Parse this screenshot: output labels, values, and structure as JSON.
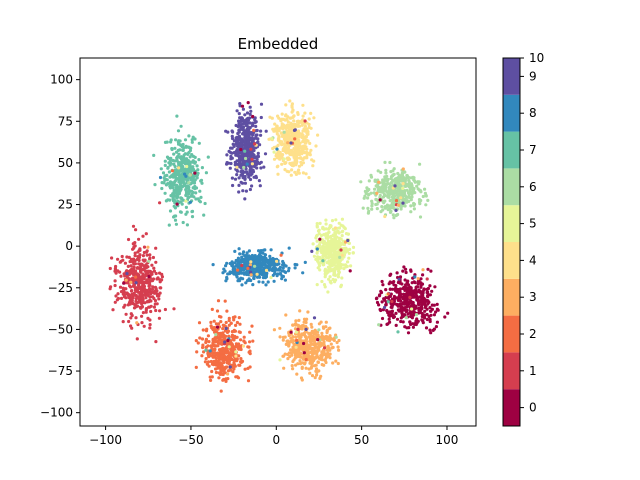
{
  "chart_data": {
    "type": "scatter",
    "title": "Embedded",
    "xlabel": "",
    "ylabel": "",
    "xlim": [
      -115,
      117
    ],
    "ylim": [
      -108,
      113
    ],
    "xticks": [
      -100,
      -50,
      0,
      50,
      100
    ],
    "yticks": [
      -100,
      -75,
      -50,
      -25,
      0,
      25,
      50,
      75,
      100
    ],
    "grid": false,
    "colorbar": {
      "range": [
        0,
        10
      ],
      "ticks": [
        0,
        1,
        2,
        3,
        4,
        5,
        6,
        7,
        8,
        9
      ],
      "top_label": "10",
      "colors": [
        "#9e0142",
        "#d53e4f",
        "#f46d43",
        "#fdae61",
        "#fee08b",
        "#e6f598",
        "#abdda4",
        "#66c2a5",
        "#3288bd",
        "#5e4fa2"
      ]
    },
    "clusters": [
      {
        "label": "0",
        "cx": 77,
        "cy": -33,
        "sx": 16,
        "sy": 14,
        "color": "#9e0142"
      },
      {
        "label": "1",
        "cx": -80,
        "cy": -22,
        "sx": 12,
        "sy": 21,
        "color": "#d53e4f"
      },
      {
        "label": "2",
        "cx": -30,
        "cy": -62,
        "sx": 12,
        "sy": 17,
        "color": "#f46d43"
      },
      {
        "label": "3",
        "cx": 20,
        "cy": -60,
        "sx": 14,
        "sy": 14,
        "color": "#fdae61"
      },
      {
        "label": "4",
        "cx": 10,
        "cy": 63,
        "sx": 10,
        "sy": 17,
        "color": "#fee08b"
      },
      {
        "label": "5",
        "cx": 33,
        "cy": -3,
        "sx": 9,
        "sy": 17,
        "color": "#e6f598"
      },
      {
        "label": "6",
        "cx": 70,
        "cy": 33,
        "sx": 14,
        "sy": 12,
        "color": "#abdda4"
      },
      {
        "label": "7",
        "cx": -55,
        "cy": 43,
        "sx": 10,
        "sy": 21,
        "color": "#66c2a5"
      },
      {
        "label": "8",
        "cx": -12,
        "cy": -12,
        "sx": 17,
        "sy": 8,
        "color": "#3288bd"
      },
      {
        "label": "9",
        "cx": -18,
        "cy": 60,
        "sx": 8,
        "sy": 21,
        "color": "#5e4fa2"
      }
    ]
  }
}
